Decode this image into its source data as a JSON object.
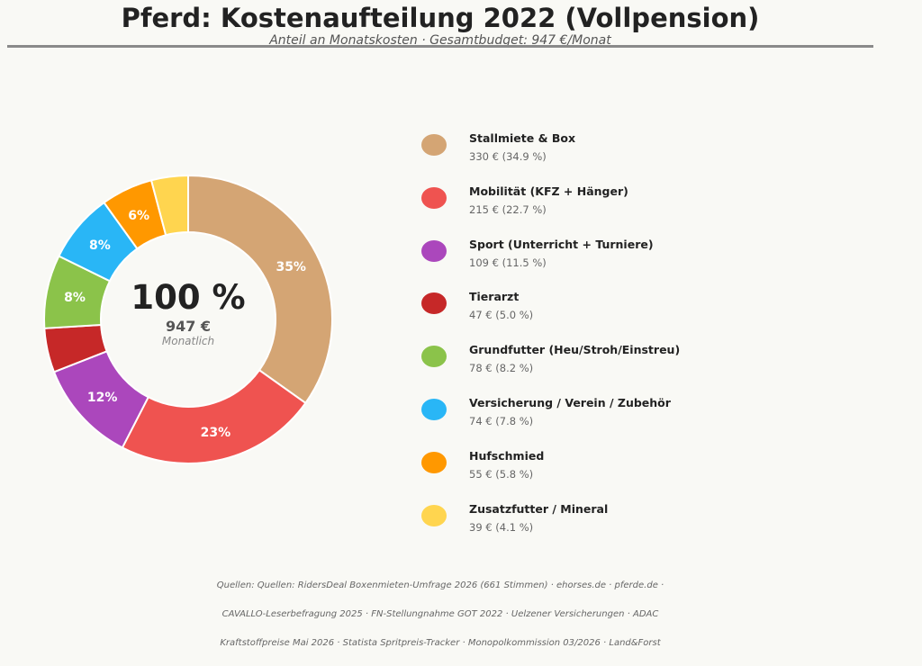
{
  "chart_data": {
    "type": "pie",
    "title": "Pferd: Kostenaufteilung 2022 (Vollpension)",
    "subtitle": "Anteil an Monatskosten · Gesamtbudget: 947 €/Monat",
    "center": {
      "percent": "100 %",
      "amount": "947 €",
      "caption": "Monatlich"
    },
    "slices": [
      {
        "label": "Stallmiete & Box",
        "value": 330,
        "share": 34.9,
        "slice_label": "35%",
        "value_text": "330 € (34.9 %)",
        "color": "#d4a574"
      },
      {
        "label": "Mobilität (KFZ + Hänger)",
        "value": 215,
        "share": 22.7,
        "slice_label": "23%",
        "value_text": "215 € (22.7 %)",
        "color": "#ef5350"
      },
      {
        "label": "Sport (Unterricht + Turniere)",
        "value": 109,
        "share": 11.5,
        "slice_label": "12%",
        "value_text": "109 € (11.5 %)",
        "color": "#ab47bc"
      },
      {
        "label": "Tierarzt",
        "value": 47,
        "share": 5.0,
        "slice_label": "",
        "value_text": "47 € (5.0 %)",
        "color": "#c62828"
      },
      {
        "label": "Grundfutter (Heu/Stroh/Einstreu)",
        "value": 78,
        "share": 8.2,
        "slice_label": "8%",
        "value_text": "78 € (8.2 %)",
        "color": "#8bc34a"
      },
      {
        "label": "Versicherung / Verein / Zubehör",
        "value": 74,
        "share": 7.8,
        "slice_label": "8%",
        "value_text": "74 € (7.8 %)",
        "color": "#29b6f6"
      },
      {
        "label": "Hufschmied",
        "value": 55,
        "share": 5.8,
        "slice_label": "6%",
        "value_text": "55 € (5.8 %)",
        "color": "#ff9800"
      },
      {
        "label": "Zusatzfutter / Mineral",
        "value": 39,
        "share": 4.1,
        "slice_label": "",
        "value_text": "39 € (4.1 %)",
        "color": "#ffd54f"
      }
    ],
    "legend_position": "right"
  },
  "sources": [
    "Quellen: Quellen: RidersDeal Boxenmieten-Umfrage 2026 (661 Stimmen) · ehorses.de · pferde.de ·",
    "CAVALLO-Leserbefragung 2025 · FN-Stellungnahme GOT 2022 · Uelzener Versicherungen · ADAC",
    "Kraftstoffpreise Mai 2026 · Statista Spritpreis-Tracker · Monopolkommission 03/2026 · Land&Forst"
  ]
}
